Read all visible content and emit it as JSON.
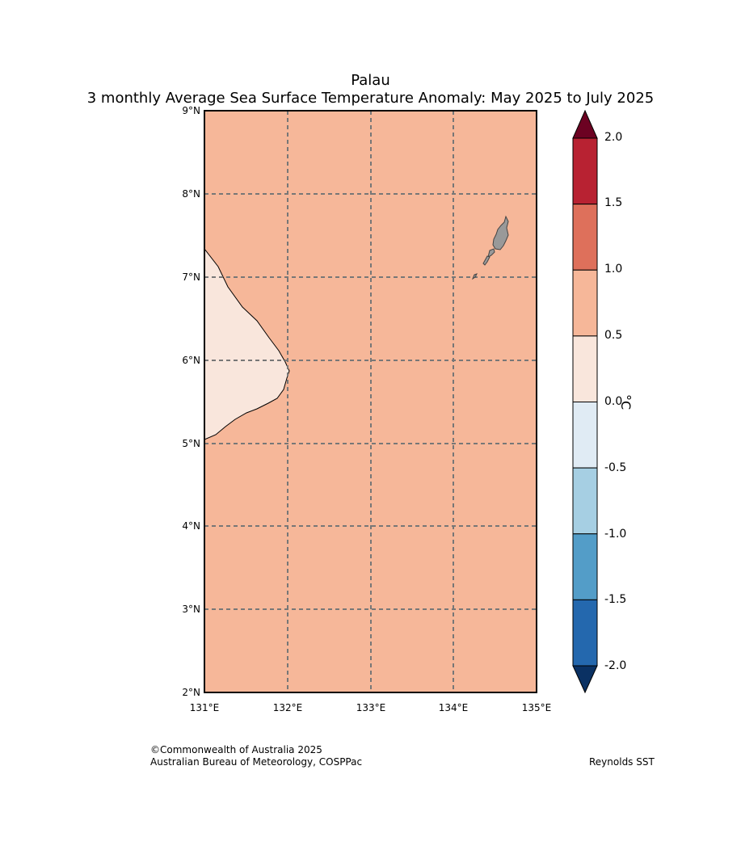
{
  "title": {
    "line1": "Palau",
    "line2": "3 monthly Average Sea Surface Temperature Anomaly: May 2025 to July 2025"
  },
  "map": {
    "lat_ticks": [
      "9°N",
      "8°N",
      "7°N",
      "6°N",
      "5°N",
      "4°N",
      "3°N",
      "2°N"
    ],
    "lon_ticks": [
      "131°E",
      "132°E",
      "133°E",
      "134°E",
      "135°E"
    ],
    "lat_range": [
      2,
      9
    ],
    "lon_range": [
      131,
      135
    ],
    "grid": "dashed",
    "ocean_anomaly_band": "0.5 to 1.0",
    "colors": {
      "ocean": "#f6b799",
      "west_region": "#f9e6dc",
      "land": "#999999"
    }
  },
  "colorbar": {
    "unit": "°C",
    "labels": [
      "2.0",
      "1.5",
      "1.0",
      "0.5",
      "0.0",
      "-0.5",
      "-1.0",
      "-1.5",
      "-2.0"
    ],
    "colors_top_to_bottom": [
      "#b82232",
      "#de705b",
      "#f6b799",
      "#f9e6dc",
      "#e0ebf4",
      "#a6cfe3",
      "#539dc8",
      "#2468ae"
    ],
    "extend_top_color": "#6c0222",
    "extend_bottom_color": "#0a3163"
  },
  "footer": {
    "copyright": "©Commonwealth of Australia 2025",
    "agency": "Australian Bureau of Meteorology, COSPPac",
    "source": "Reynolds SST"
  }
}
